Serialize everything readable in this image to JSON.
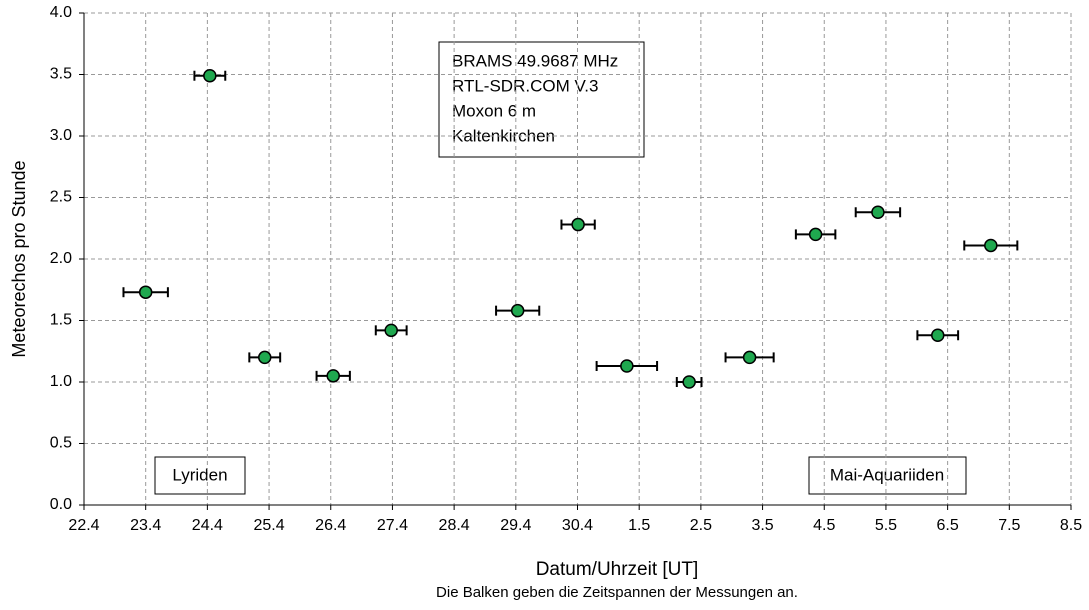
{
  "chart_data": {
    "type": "scatter",
    "x_label": "Datum/Uhrzeit  [UT]",
    "note": "Die Balken geben die Zeitspannen der Messungen an.",
    "y_label": "Meteorechos pro Stunde",
    "info": [
      "BRAMS 49.9687 MHz",
      "RTL-SDR.COM V.3",
      "Moxon 6 m",
      "Kaltenkirchen"
    ],
    "annotations": [
      "Lyriden",
      "Mai-Aquariiden"
    ],
    "x": [
      1.0,
      2.04,
      2.93,
      4.04,
      4.98,
      7.03,
      8.01,
      8.8,
      9.81,
      10.79,
      11.86,
      12.87,
      13.84,
      14.7
    ],
    "values": [
      1.73,
      3.49,
      1.2,
      1.05,
      1.42,
      1.58,
      2.28,
      1.13,
      1.0,
      1.2,
      2.2,
      2.38,
      1.38,
      2.11
    ],
    "xerr": [
      0.36,
      0.25,
      0.25,
      0.27,
      0.25,
      0.35,
      0.27,
      0.49,
      0.2,
      0.39,
      0.32,
      0.36,
      0.33,
      0.43
    ],
    "color": "#1fa84f",
    "xlim": [
      0,
      16
    ],
    "xticks": [
      {
        "value": 0,
        "label": "22.4"
      },
      {
        "value": 1,
        "label": "23.4"
      },
      {
        "value": 2,
        "label": "24.4"
      },
      {
        "value": 3,
        "label": "25.4"
      },
      {
        "value": 4,
        "label": "26.4"
      },
      {
        "value": 5,
        "label": "27.4"
      },
      {
        "value": 6,
        "label": "28.4"
      },
      {
        "value": 7,
        "label": "29.4"
      },
      {
        "value": 8,
        "label": "30.4"
      },
      {
        "value": 9,
        "label": "1.5"
      },
      {
        "value": 10,
        "label": "2.5"
      },
      {
        "value": 11,
        "label": "3.5"
      },
      {
        "value": 12,
        "label": "4.5"
      },
      {
        "value": 13,
        "label": "5.5"
      },
      {
        "value": 14,
        "label": "6.5"
      },
      {
        "value": 15,
        "label": "7.5"
      },
      {
        "value": 16,
        "label": "8.5"
      }
    ],
    "ylim": [
      0,
      4
    ],
    "yticks": [
      {
        "value": 0,
        "label": "0.0"
      },
      {
        "value": 0.5,
        "label": "0.5"
      },
      {
        "value": 1,
        "label": "1.0"
      },
      {
        "value": 1.5,
        "label": "1.5"
      },
      {
        "value": 2,
        "label": "2.0"
      },
      {
        "value": 2.5,
        "label": "2.5"
      },
      {
        "value": 3,
        "label": "3.0"
      },
      {
        "value": 3.5,
        "label": "3.5"
      },
      {
        "value": 4,
        "label": "4.0"
      }
    ],
    "grid": true
  }
}
